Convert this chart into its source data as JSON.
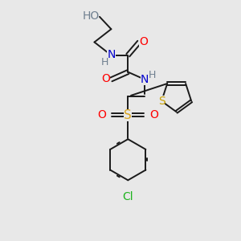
{
  "background_color": "#e8e8e8",
  "bond_color": "#1a1a1a",
  "bond_lw": 1.4,
  "figsize": [
    3.0,
    3.0
  ],
  "dpi": 100,
  "xlim": [
    -1.0,
    4.0
  ],
  "ylim": [
    -3.2,
    3.2
  ],
  "colors": {
    "C": "#1a1a1a",
    "H": "#708090",
    "O": "#ff0000",
    "N": "#0000cd",
    "S_thio": "#c8a000",
    "S_sulf": "#daa520",
    "Cl": "#1eb31e"
  }
}
